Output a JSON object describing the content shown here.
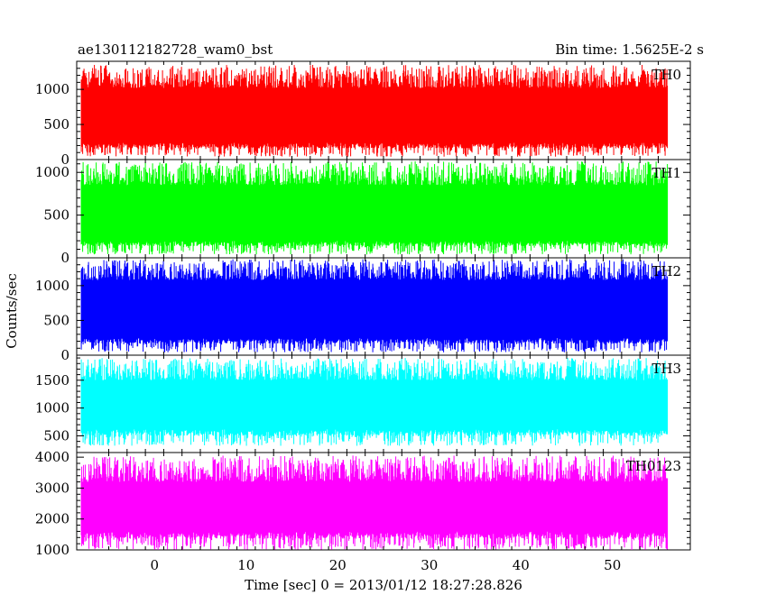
{
  "header": {
    "title": "ae130112182728_wam0_bst",
    "bin_time": "Bin time: 1.5625E-2 s"
  },
  "axes": {
    "xlabel": "Time [sec] 0 = 2013/01/12 18:27:28.826",
    "ylabel": "Counts/sec"
  },
  "chart_data": {
    "type": "line",
    "title": "ae130112182728_wam0_bst",
    "subtitle": "Bin time: 1.5625E-2 s",
    "xlabel": "Time [sec] 0 = 2013/01/12 18:27:28.826",
    "ylabel": "Counts/sec",
    "xlim": [
      -8.5,
      58.5
    ],
    "x_range": [
      -8,
      56
    ],
    "x_ticks": [
      0,
      10,
      20,
      30,
      40,
      50
    ],
    "grid": false,
    "panels": [
      {
        "name": "TH0",
        "color": "#ff0000",
        "ylim": [
          0,
          1400
        ],
        "y_ticks": [
          0,
          500,
          1000
        ],
        "band": {
          "low": 240,
          "high": 1020,
          "floor_min": 40,
          "peak_max": 1350,
          "baseline": 600
        }
      },
      {
        "name": "TH1",
        "color": "#00ff00",
        "ylim": [
          0,
          1150
        ],
        "y_ticks": [
          0,
          500,
          1000
        ],
        "band": {
          "low": 200,
          "high": 850,
          "floor_min": 40,
          "peak_max": 1130,
          "baseline": 520
        }
      },
      {
        "name": "TH2",
        "color": "#0000ff",
        "ylim": [
          0,
          1400
        ],
        "y_ticks": [
          0,
          500,
          1000
        ],
        "band": {
          "low": 250,
          "high": 1080,
          "floor_min": 40,
          "peak_max": 1380,
          "baseline": 650
        }
      },
      {
        "name": "TH3",
        "color": "#00ffff",
        "ylim": [
          200,
          1950
        ],
        "y_ticks": [
          500,
          1000,
          1500
        ],
        "band": {
          "low": 620,
          "high": 1500,
          "floor_min": 320,
          "peak_max": 1900,
          "baseline": 1050
        }
      },
      {
        "name": "TH0123",
        "color": "#ff00ff",
        "ylim": [
          1000,
          4150
        ],
        "y_ticks": [
          1000,
          2000,
          3000,
          4000
        ],
        "band": {
          "low": 1600,
          "high": 3200,
          "floor_min": 1000,
          "peak_max": 4050,
          "baseline": 2450
        }
      }
    ]
  }
}
